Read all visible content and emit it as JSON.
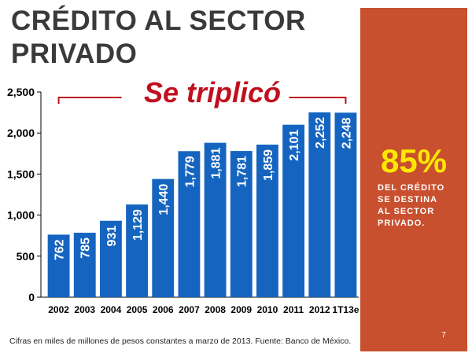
{
  "slide": {
    "title": "CRÉDITO AL SECTOR PRIVADO",
    "callout": "Se triplicó",
    "source": "Cifras en miles de millones de pesos constantes a marzo de 2013. Fuente: Banco de México.",
    "page_number": "7"
  },
  "sidebar": {
    "percent": "85%",
    "text": "DEL CRÉDITO\nSE DESTINA\nAL SECTOR\nPRIVADO.",
    "background_color": "#c9502e",
    "percent_color": "#ffe800"
  },
  "chart_data": {
    "type": "bar",
    "categories": [
      "2002",
      "2003",
      "2004",
      "2005",
      "2006",
      "2007",
      "2008",
      "2009",
      "2010",
      "2011",
      "2012",
      "1T13e"
    ],
    "values": [
      762,
      785,
      931,
      1129,
      1440,
      1779,
      1881,
      1781,
      1859,
      2101,
      2252,
      2248
    ],
    "data_labels": [
      "762",
      "785",
      "931",
      "1,129",
      "1,440",
      "1,779",
      "1,881",
      "1,781",
      "1,859",
      "2,101",
      "2,252",
      "2,248"
    ],
    "yticks": [
      0,
      500,
      1000,
      1500,
      2000,
      2500
    ],
    "ytick_labels": [
      "0",
      "500",
      "1,000",
      "1,500",
      "2,000",
      "2,500"
    ],
    "ylim": [
      0,
      2500
    ],
    "bar_color": "#1565c0",
    "grid": false,
    "legend": false
  }
}
